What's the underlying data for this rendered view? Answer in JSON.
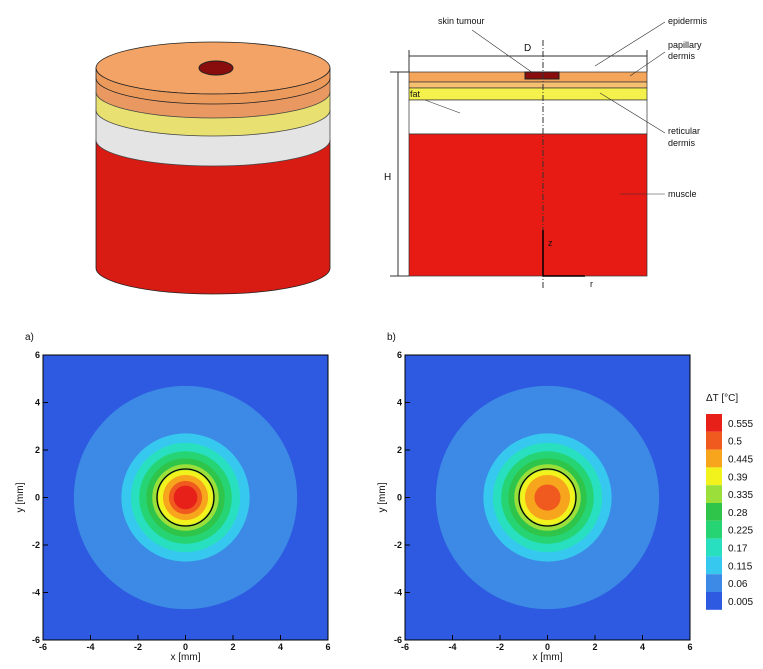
{
  "schematic": {
    "skin_tumour": "skin tumour",
    "epidermis": "epidermis",
    "papillary_dermis": [
      "papillary",
      "dermis"
    ],
    "fat": "fat",
    "reticular_dermis": [
      "reticular",
      "dermis"
    ],
    "muscle": "muscle",
    "D": "D",
    "H": "H",
    "z": "z",
    "r": "r"
  },
  "panels": [
    {
      "label": "a)",
      "xlabel": "x [mm]",
      "ylabel": "y [mm]",
      "xlim": [
        -6,
        6
      ],
      "ylim": [
        -6,
        6
      ],
      "xticks": [
        -6,
        -4,
        -2,
        0,
        2,
        4,
        6
      ],
      "yticks": [
        -6,
        -4,
        -2,
        0,
        2,
        4,
        6
      ]
    },
    {
      "label": "b)",
      "xlabel": "x [mm]",
      "ylabel": "y [mm]",
      "xlim": [
        -6,
        6
      ],
      "ylim": [
        -6,
        6
      ],
      "xticks": [
        -6,
        -4,
        -2,
        0,
        2,
        4,
        6
      ],
      "yticks": [
        -6,
        -4,
        -2,
        0,
        2,
        4,
        6
      ]
    }
  ],
  "colorbar": {
    "title": "ΔT [°C]",
    "levels": [
      0.555,
      0.5,
      0.445,
      0.39,
      0.335,
      0.28,
      0.225,
      0.17,
      0.115,
      0.06,
      0.005
    ],
    "colors": [
      "#e8201a",
      "#f05a1e",
      "#f7a51c",
      "#f2f21c",
      "#9be03a",
      "#2fc44a",
      "#26d474",
      "#28e0c0",
      "#37c8f0",
      "#3c8ae6",
      "#2d5ae0"
    ]
  }
}
